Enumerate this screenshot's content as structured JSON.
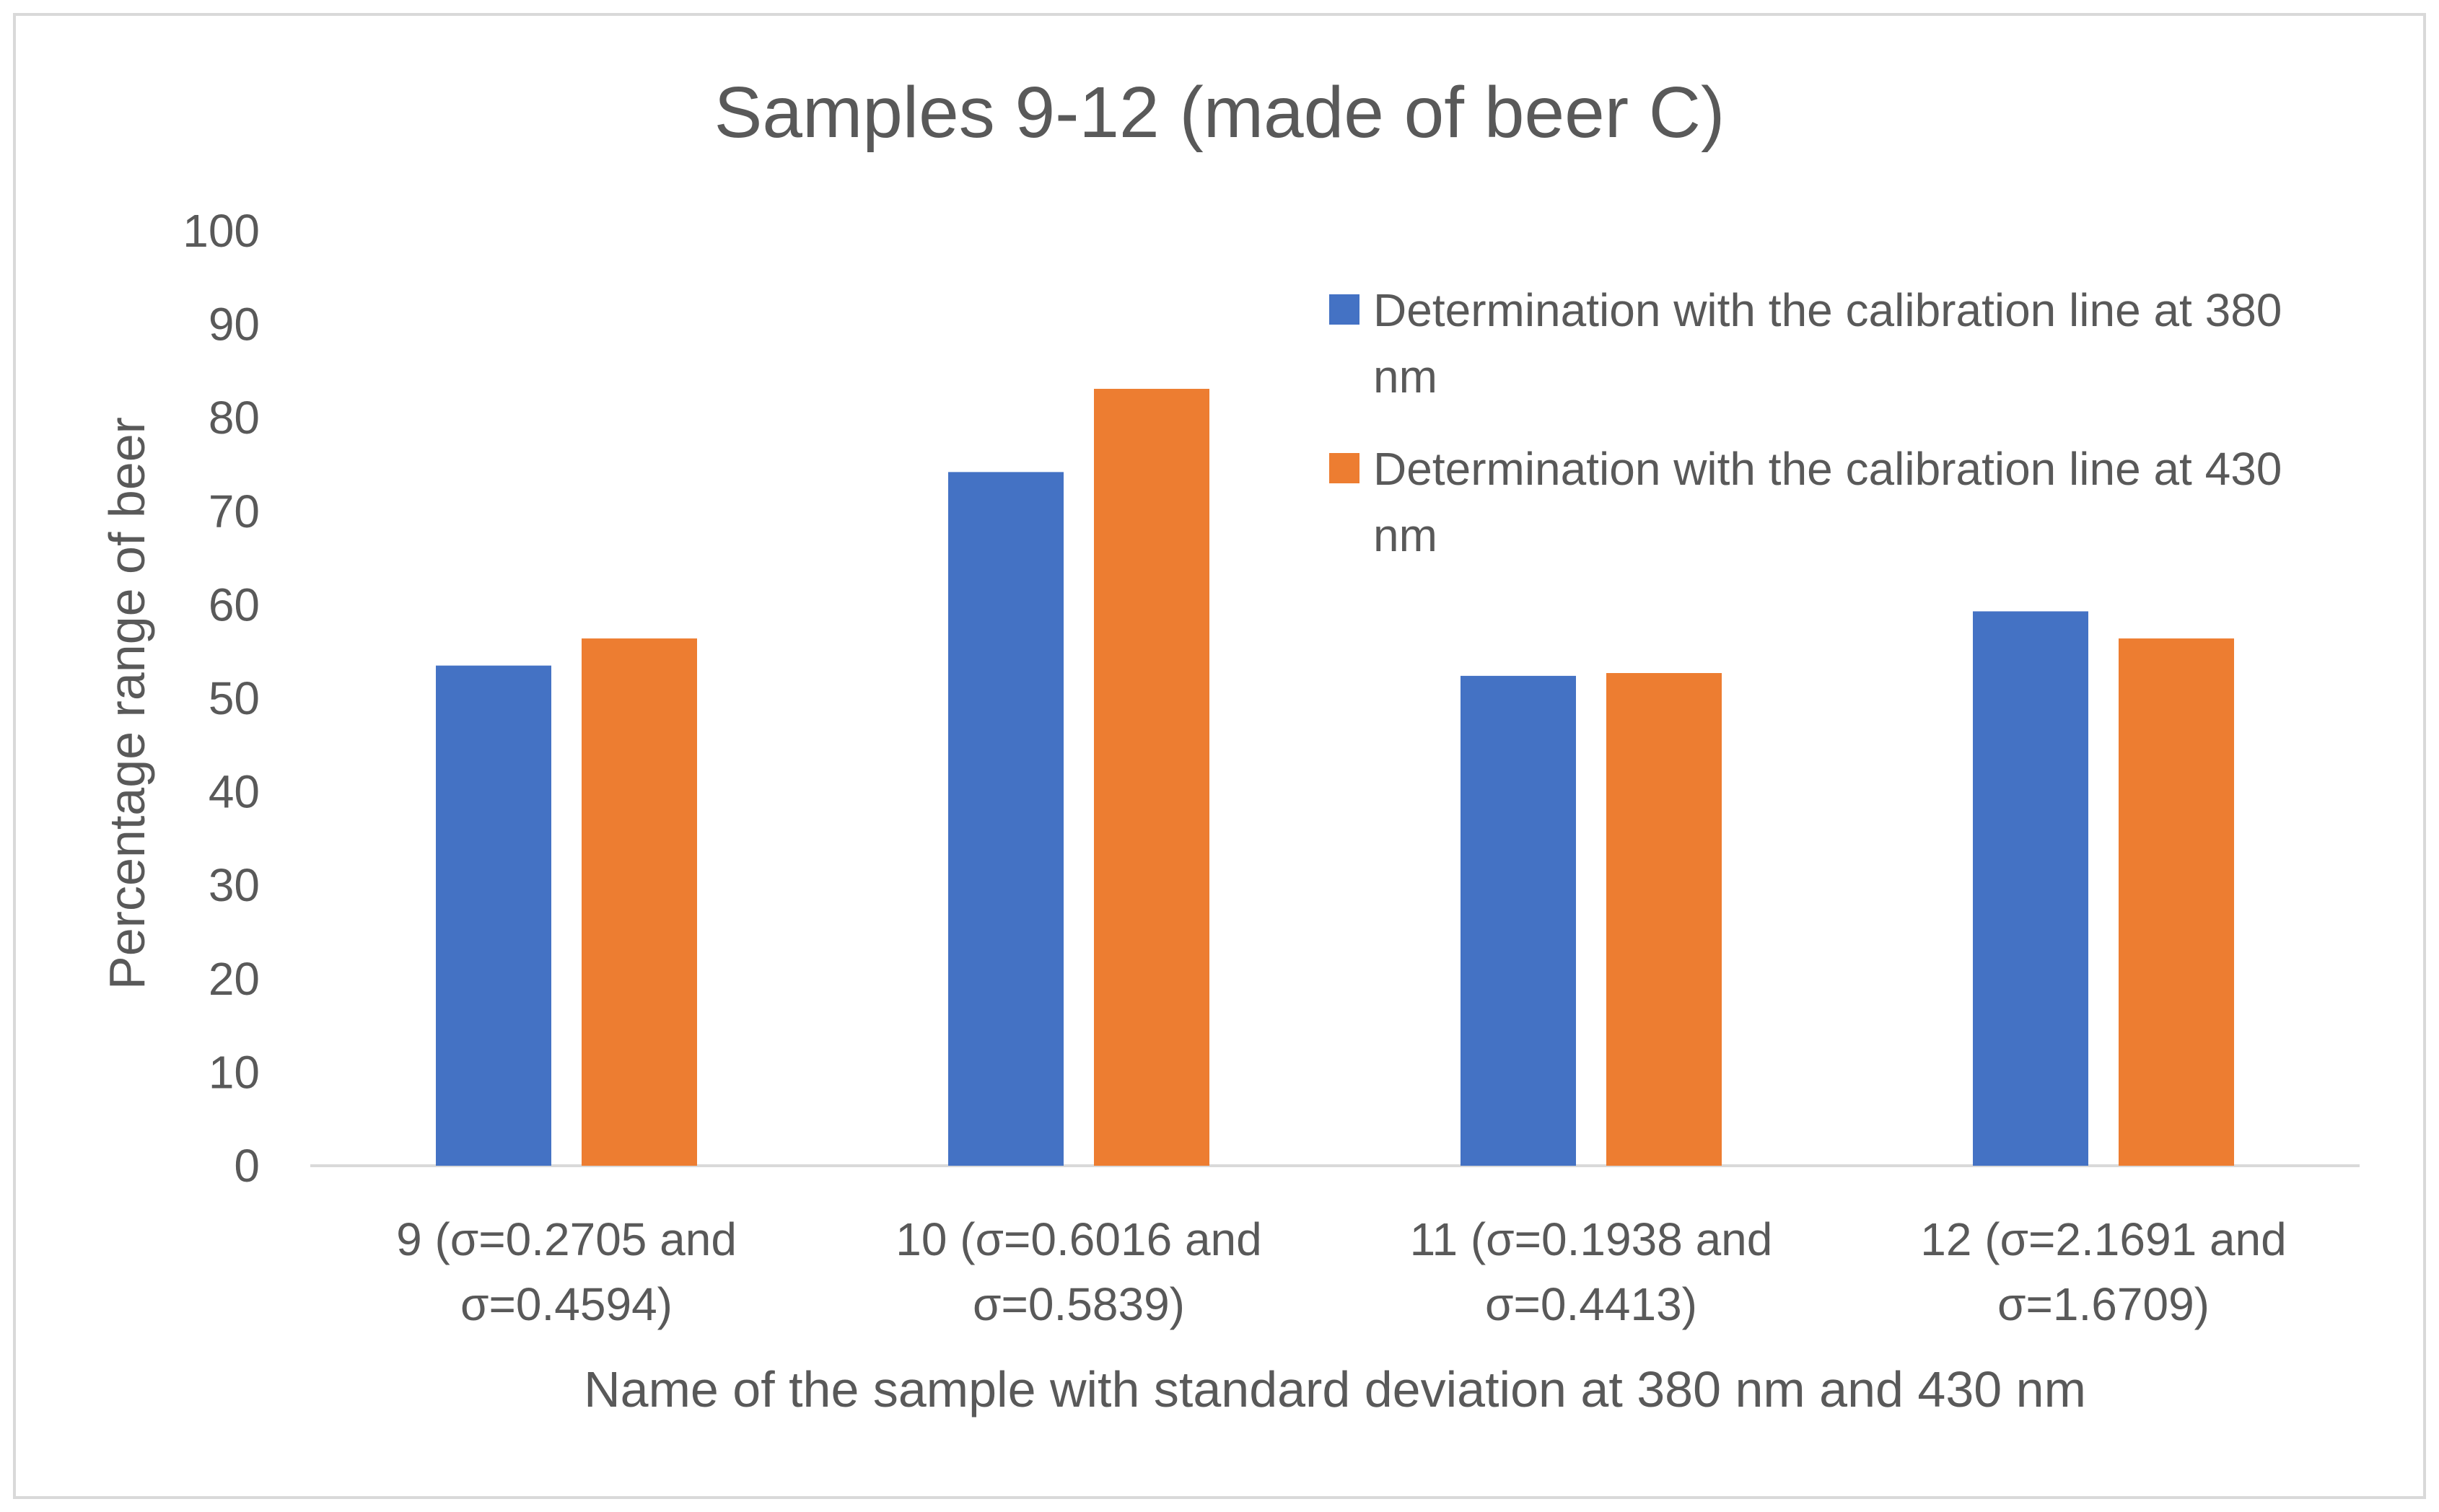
{
  "chart_data": {
    "type": "bar",
    "title": "Samples 9-12 (made of beer C)",
    "xlabel": "Name of the sample with standard deviation at 380 nm and 430 nm",
    "ylabel": "Percentage range of beer",
    "ylim": [
      0,
      100
    ],
    "yticks": [
      0,
      10,
      20,
      30,
      40,
      50,
      60,
      70,
      80,
      90,
      100
    ],
    "grid": false,
    "legend_position": "top-right",
    "categories": [
      [
        "9 (σ=0.2705 and",
        "σ=0.4594)"
      ],
      [
        "10 (σ=0.6016 and",
        "σ=0.5839)"
      ],
      [
        "11 (σ=0.1938 and",
        "σ=0.4413)"
      ],
      [
        "12 (σ=2.1691 and",
        "σ=1.6709)"
      ]
    ],
    "series": [
      {
        "name": [
          "Determination with the calibration line at 380",
          "nm"
        ],
        "color": "#4472c4",
        "values": [
          53.5,
          74.2,
          52.4,
          59.3
        ]
      },
      {
        "name": [
          "Determination with the calibration line at 430",
          "nm"
        ],
        "color": "#ed7d31",
        "values": [
          56.4,
          83.1,
          52.7,
          56.4
        ]
      }
    ]
  }
}
